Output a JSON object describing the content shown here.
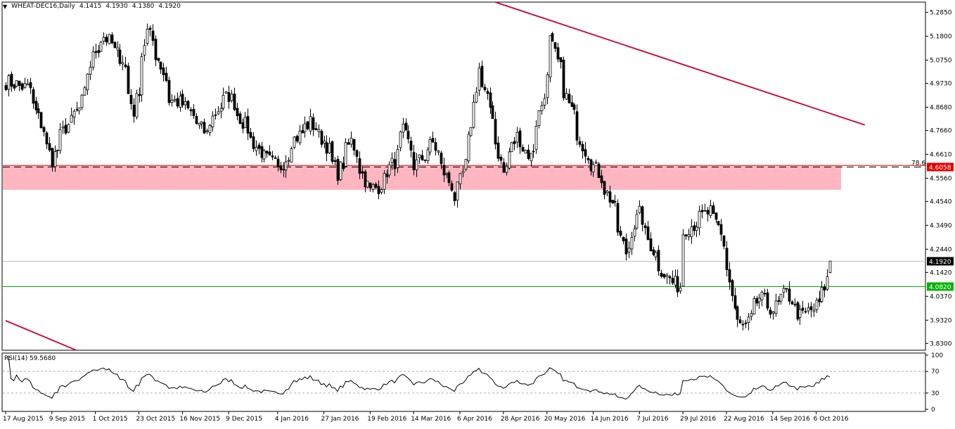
{
  "header": {
    "symbol": "WHEAT-DEC16,Daily",
    "open": "4.1415",
    "high": "4.1930",
    "low": "4.1380",
    "close": "4.1920"
  },
  "rsi_header": {
    "label": "RSI(14) 59.5680"
  },
  "colors": {
    "bull": "#ffffff",
    "bear": "#000000",
    "trendline": "#c8143c",
    "zone": "#ffb6c1",
    "support": "#00b400",
    "price_line": "#c0c0c0",
    "fib_label_bg": "#e00000"
  },
  "chart_data": [
    {
      "type": "candlestick",
      "title": "WHEAT-DEC16,Daily",
      "ylim": [
        3.8,
        5.33
      ],
      "y_ticks": [
        "5.2850",
        "5.1800",
        "5.0750",
        "4.9730",
        "4.8680",
        "4.7660",
        "4.6610",
        "4.5560",
        "4.4540",
        "4.3490",
        "4.2440",
        "4.1420",
        "4.0370",
        "3.9320",
        "3.8300"
      ],
      "x_ticks": [
        "17 Aug 2015",
        "9 Sep 2015",
        "1 Oct 2015",
        "23 Oct 2015",
        "16 Nov 2015",
        "9 Dec 2015",
        "4 Jan 2016",
        "27 Jan 2016",
        "19 Feb 2016",
        "14 Mar 2016",
        "6 Apr 2016",
        "28 Apr 2016",
        "20 May 2016",
        "14 Jun 2016",
        "7 Jul 2016",
        "29 Jul 2016",
        "22 Aug 2016",
        "14 Sep 2016",
        "6 Oct 2016"
      ],
      "last_ohlc": {
        "open": 4.1415,
        "high": 4.193,
        "low": 4.138,
        "close": 4.192
      },
      "anchors": [
        [
          "2015-08-17",
          4.98
        ],
        [
          "2015-08-28",
          4.95
        ],
        [
          "2015-09-09",
          4.64
        ],
        [
          "2015-09-16",
          4.78
        ],
        [
          "2015-09-23",
          4.86
        ],
        [
          "2015-10-01",
          5.12
        ],
        [
          "2015-10-06",
          5.18
        ],
        [
          "2015-10-15",
          5.08
        ],
        [
          "2015-10-21",
          4.85
        ],
        [
          "2015-10-28",
          5.2
        ],
        [
          "2015-11-03",
          5.08
        ],
        [
          "2015-11-09",
          4.9
        ],
        [
          "2015-11-16",
          4.88
        ],
        [
          "2015-11-20",
          4.83
        ],
        [
          "2015-11-27",
          4.75
        ],
        [
          "2015-12-03",
          4.86
        ],
        [
          "2015-12-09",
          4.92
        ],
        [
          "2015-12-15",
          4.82
        ],
        [
          "2015-12-24",
          4.68
        ],
        [
          "2016-01-04",
          4.59
        ],
        [
          "2016-01-11",
          4.72
        ],
        [
          "2016-01-20",
          4.8
        ],
        [
          "2016-01-27",
          4.72
        ],
        [
          "2016-02-03",
          4.58
        ],
        [
          "2016-02-10",
          4.72
        ],
        [
          "2016-02-19",
          4.5
        ],
        [
          "2016-02-24",
          4.52
        ],
        [
          "2016-03-03",
          4.63
        ],
        [
          "2016-03-08",
          4.76
        ],
        [
          "2016-03-14",
          4.61
        ],
        [
          "2016-03-23",
          4.71
        ],
        [
          "2016-03-30",
          4.56
        ],
        [
          "2016-04-04",
          4.47
        ],
        [
          "2016-04-11",
          4.72
        ],
        [
          "2016-04-15",
          5.04
        ],
        [
          "2016-04-22",
          4.84
        ],
        [
          "2016-04-28",
          4.58
        ],
        [
          "2016-05-05",
          4.74
        ],
        [
          "2016-05-12",
          4.65
        ],
        [
          "2016-05-18",
          4.88
        ],
        [
          "2016-05-23",
          5.16
        ],
        [
          "2016-06-01",
          4.88
        ],
        [
          "2016-06-09",
          4.68
        ],
        [
          "2016-06-16",
          4.58
        ],
        [
          "2016-06-23",
          4.45
        ],
        [
          "2016-06-30",
          4.23
        ],
        [
          "2016-07-07",
          4.4
        ],
        [
          "2016-07-14",
          4.24
        ],
        [
          "2016-07-21",
          4.12
        ],
        [
          "2016-07-28",
          4.08
        ],
        [
          "2016-07-29",
          4.32
        ],
        [
          "2016-08-05",
          4.36
        ],
        [
          "2016-08-12",
          4.41
        ],
        [
          "2016-08-17",
          4.34
        ],
        [
          "2016-08-22",
          4.16
        ],
        [
          "2016-08-26",
          3.92
        ],
        [
          "2016-08-31",
          3.9
        ],
        [
          "2016-09-07",
          4.03
        ],
        [
          "2016-09-14",
          3.98
        ],
        [
          "2016-09-21",
          4.05
        ],
        [
          "2016-09-28",
          3.95
        ],
        [
          "2016-10-05",
          3.98
        ],
        [
          "2016-10-10",
          4.05
        ],
        [
          "2016-10-13",
          4.1415
        ]
      ],
      "levels": [
        {
          "name": "78.6",
          "value": 4.6058,
          "label": "4.6058",
          "style": "dashed"
        },
        {
          "name": "current",
          "value": 4.192,
          "label": "4.1920"
        },
        {
          "name": "support",
          "value": 4.082,
          "label": "4.0820"
        }
      ],
      "zone": {
        "from": 4.505,
        "to": 4.61
      },
      "trendlines": [
        {
          "from": [
            "2016-04-25",
            5.33
          ],
          "to": [
            "2016-10-31",
            4.79
          ]
        },
        {
          "from": [
            "2015-08-17",
            3.93
          ],
          "to": [
            "2015-09-22",
            3.8
          ]
        }
      ],
      "fib_label": "78.6"
    },
    {
      "type": "line",
      "title": "RSI(14) 59.5680",
      "ylim": [
        0,
        100
      ],
      "y_ticks": [
        "100",
        "70",
        "30",
        "0"
      ],
      "levels": [
        70,
        30
      ],
      "last_value": 59.568
    }
  ]
}
